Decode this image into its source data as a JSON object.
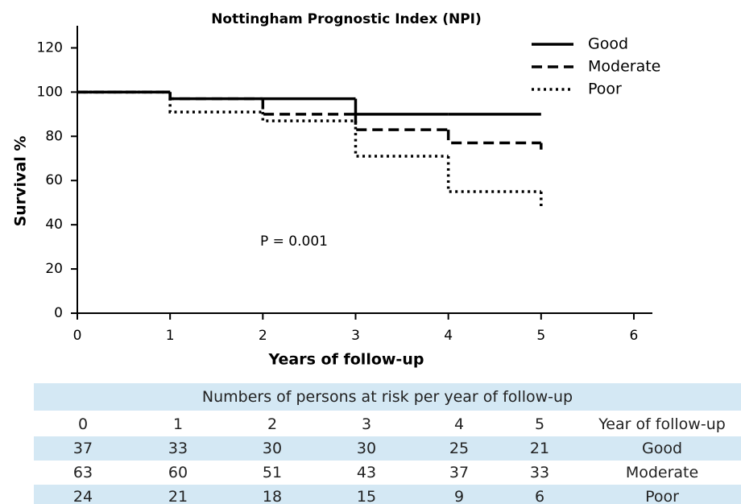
{
  "chart_data": {
    "type": "step",
    "title": "Nottingham Prognostic Index (NPI)",
    "x_label": "Years of follow-up",
    "y_label": "Survival %",
    "annotation": "P = 0.001",
    "x": [
      0,
      1,
      2,
      3,
      4,
      5
    ],
    "series": [
      {
        "name": "Good",
        "color": "#000000",
        "line_style": "solid",
        "values": [
          100,
          97,
          97,
          90,
          90,
          90
        ]
      },
      {
        "name": "Moderate",
        "color": "#000000",
        "line_style": "dashed",
        "values": [
          100,
          97,
          90,
          83,
          77,
          74
        ]
      },
      {
        "name": "Poor",
        "color": "#000000",
        "line_style": "dotted",
        "values": [
          100,
          91,
          87,
          71,
          55,
          48
        ]
      }
    ],
    "xlim": [
      0,
      6.2
    ],
    "xticks": [
      0,
      1,
      2,
      3,
      4,
      5,
      6
    ],
    "ylim": [
      0,
      130
    ],
    "yticks": [
      0,
      20,
      40,
      60,
      80,
      100,
      120
    ],
    "grid": false,
    "legend": "top-right"
  },
  "table": {
    "title": "Numbers of persons at risk per year of follow-up",
    "header": [
      0,
      1,
      2,
      3,
      4,
      5,
      "Year of follow-up"
    ],
    "rows": [
      [
        37,
        33,
        30,
        30,
        25,
        21,
        "Good"
      ],
      [
        63,
        60,
        51,
        43,
        37,
        33,
        "Moderate"
      ],
      [
        24,
        21,
        18,
        15,
        9,
        6,
        "Poor"
      ]
    ]
  }
}
